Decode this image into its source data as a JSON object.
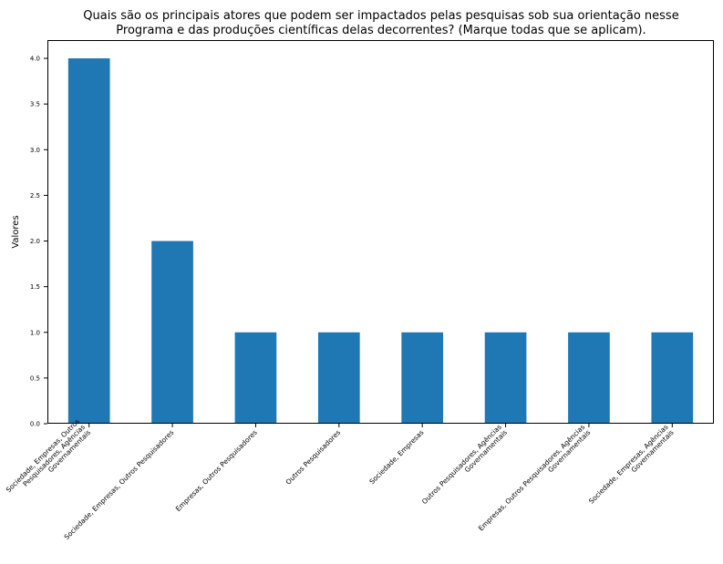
{
  "chart_data": {
    "type": "bar",
    "title_lines": [
      "Quais são os principais atores que podem ser impactados pelas pesquisas sob sua orientação nesse",
      "Programa e das produções científicas delas decorrentes? (Marque todas que se aplicam)."
    ],
    "xlabel": "",
    "ylabel": "Valores",
    "categories": [
      [
        "Sociedade, Empresas, Outros",
        "Pesquisadores, Agências",
        "Governamentais"
      ],
      [
        "Sociedade, Empresas, Outros Pesquisadores"
      ],
      [
        "Empresas, Outros Pesquisadores"
      ],
      [
        "Outros Pesquisadores"
      ],
      [
        "Sociedade, Empresas"
      ],
      [
        "Outros Pesquisadores, Agências",
        "Governamentais"
      ],
      [
        "Empresas, Outros Pesquisadores, Agências",
        "Governamentais"
      ],
      [
        "Sociedade, Empresas, Agências",
        "Governamentais"
      ]
    ],
    "values": [
      4,
      2,
      1,
      1,
      1,
      1,
      1,
      1
    ],
    "ylim": [
      0,
      4.2
    ],
    "yticks": [
      "0.0",
      "0.5",
      "1.0",
      "1.5",
      "2.0",
      "2.5",
      "3.0",
      "3.5",
      "4.0"
    ],
    "grid": false,
    "bar_color": "#1f77b4"
  }
}
